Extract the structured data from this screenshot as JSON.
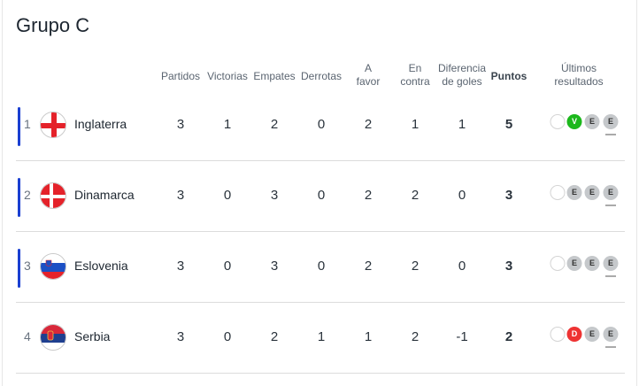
{
  "title": "Grupo C",
  "headers": {
    "played": "Partidos",
    "won": "Victorias",
    "drawn": "Empates",
    "lost": "Derrotas",
    "gf1": "A",
    "gf2": "favor",
    "ga1": "En",
    "ga2": "contra",
    "gd1": "Diferencia",
    "gd2": "de goles",
    "points": "Puntos",
    "last1": "Últimos",
    "last2": "resultados"
  },
  "colors": {
    "qualified": "#1a3fd1",
    "win": "#1cb81c",
    "loss": "#ee3333",
    "draw": "#c5c8cb"
  },
  "rows": [
    {
      "pos": "1",
      "team": "Inglaterra",
      "flag": "england-flag",
      "qualified": true,
      "stats": [
        "3",
        "1",
        "2",
        "0",
        "2",
        "1",
        "1"
      ],
      "points": "5",
      "results": [
        "",
        "V",
        "E",
        "E"
      ]
    },
    {
      "pos": "2",
      "team": "Dinamarca",
      "flag": "denmark-flag",
      "qualified": true,
      "stats": [
        "3",
        "0",
        "3",
        "0",
        "2",
        "2",
        "0"
      ],
      "points": "3",
      "results": [
        "",
        "E",
        "E",
        "E"
      ]
    },
    {
      "pos": "3",
      "team": "Eslovenia",
      "flag": "slovenia-flag",
      "qualified": true,
      "stats": [
        "3",
        "0",
        "3",
        "0",
        "2",
        "2",
        "0"
      ],
      "points": "3",
      "results": [
        "",
        "E",
        "E",
        "E"
      ]
    },
    {
      "pos": "4",
      "team": "Serbia",
      "flag": "serbia-flag",
      "qualified": false,
      "stats": [
        "3",
        "0",
        "2",
        "1",
        "1",
        "2",
        "-1"
      ],
      "points": "2",
      "results": [
        "",
        "D",
        "E",
        "E"
      ]
    }
  ]
}
